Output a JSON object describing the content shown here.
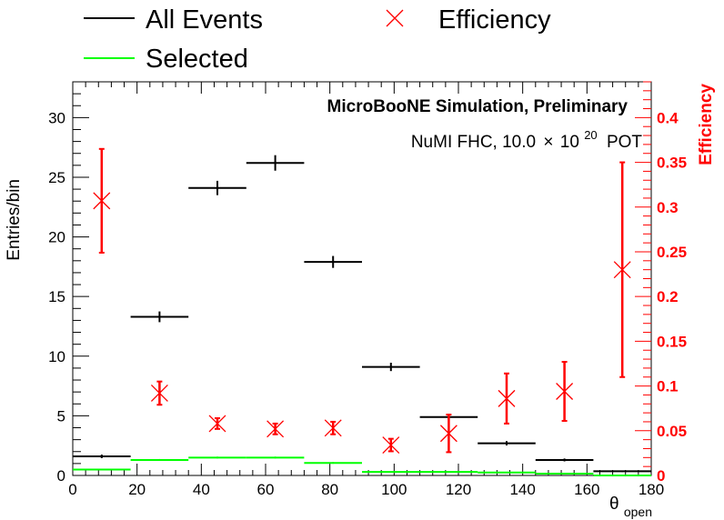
{
  "chart_data": {
    "type": "scatter",
    "title": "MicroBooNE Simulation, Preliminary",
    "subtitle_prefix": "NuMI FHC, 10.0",
    "subtitle_times": "×",
    "subtitle_base": "10",
    "subtitle_exp": "20",
    "subtitle_suffix": "POT",
    "xlabel_main": "θ",
    "xlabel_sub": "open",
    "ylabel_left": "Entries/bin",
    "ylabel_right": "Efficiency",
    "xlim": [
      0,
      180
    ],
    "ylim_left": [
      0,
      33
    ],
    "ylim_right": [
      0,
      0.44
    ],
    "x_ticks": [
      0,
      20,
      40,
      60,
      80,
      100,
      120,
      140,
      160,
      180
    ],
    "y_left_ticks": [
      0,
      5,
      10,
      15,
      20,
      25,
      30
    ],
    "y_right_ticks": [
      0,
      0.05,
      0.1,
      0.15,
      0.2,
      0.25,
      0.3,
      0.35,
      0.4
    ],
    "bin_edges": [
      0,
      18,
      36,
      54,
      72,
      90,
      108,
      126,
      144,
      162,
      180
    ],
    "legend": {
      "all_events": "All Events",
      "selected": "Selected",
      "efficiency": "Efficiency"
    },
    "colors": {
      "all_events": "#000000",
      "selected": "#00ff00",
      "efficiency": "#ff0000",
      "right_axis": "#ff0000"
    },
    "series": [
      {
        "name": "All Events",
        "values": [
          1.6,
          13.3,
          24.1,
          26.2,
          17.9,
          9.1,
          4.9,
          2.7,
          1.3,
          0.35
        ],
        "errors": [
          0.15,
          0.45,
          0.6,
          0.65,
          0.5,
          0.35,
          0.25,
          0.18,
          0.12,
          0.06
        ]
      },
      {
        "name": "Selected",
        "values": [
          0.5,
          1.3,
          1.5,
          1.5,
          1.05,
          0.3,
          0.3,
          0.25,
          0.15,
          0.0
        ],
        "errors": [
          0.05,
          0.08,
          0.08,
          0.08,
          0.07,
          0.04,
          0.04,
          0.03,
          0.03,
          0.0
        ]
      },
      {
        "name": "Efficiency",
        "values": [
          0.307,
          0.092,
          0.058,
          0.052,
          0.053,
          0.034,
          0.047,
          0.086,
          0.094,
          0.23
        ],
        "errors": [
          0.058,
          0.013,
          0.006,
          0.006,
          0.007,
          0.007,
          0.021,
          0.028,
          0.033,
          0.12
        ]
      }
    ]
  }
}
